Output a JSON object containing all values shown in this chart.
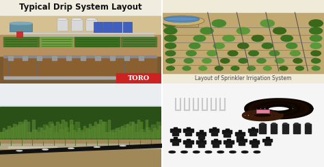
{
  "figsize": [
    4.74,
    2.44
  ],
  "dpi": 100,
  "panels": {
    "top_left": {
      "bg_top": "#c8a870",
      "bg_mid": "#b89860",
      "bg_bot": "#a08050",
      "title": "Typical Drip System Layout",
      "title_color": "#111111",
      "title_fontsize": 8.5,
      "toro_color": "#cc2222",
      "sky_color": "#d4c090",
      "equipment_color": "#d0ccc0",
      "tank_color": "#a0b0c0",
      "pipe_color": "#cccccc",
      "field_colors": [
        "#5a7830",
        "#8aaa40",
        "#4a9030",
        "#3a8028",
        "#a0c060"
      ],
      "underground_color": "#7a5830"
    },
    "top_right": {
      "bg_color": "#d8c898",
      "ground_color": "#c0a870",
      "plant_color": "#4a8030",
      "pipe_color": "#888888",
      "tank_color": "#c8a860",
      "water_color": "#6090c0",
      "label": "Layout of Sprinkler Irrigation System",
      "label_color": "#444444",
      "label_fontsize": 5.5,
      "white_bg": "#f0ead8"
    },
    "bot_left": {
      "sky_color": "#e8eef0",
      "horizon_color": "#d0dce0",
      "grass_dark": "#3a6020",
      "grass_light": "#6a9040",
      "ground_color": "#9a8060",
      "soil_color": "#b09070",
      "pipe_color": "#222222",
      "water_color": "#a0b8c8"
    },
    "bot_right": {
      "bg_color": "#f5f5f5",
      "tube_dark": "#1a0a00",
      "tube_mid": "#2a1400",
      "tube_brown": "#5a3010",
      "pin_color": "#e0e0e0",
      "fitting_color": "#151515",
      "fitting2_color": "#252525"
    }
  }
}
